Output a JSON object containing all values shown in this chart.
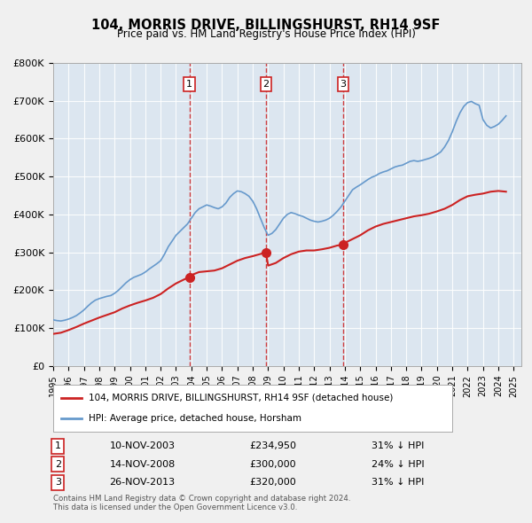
{
  "title": "104, MORRIS DRIVE, BILLINGSHURST, RH14 9SF",
  "subtitle": "Price paid vs. HM Land Registry's House Price Index (HPI)",
  "hpi_color": "#6699cc",
  "price_color": "#cc2222",
  "background_color": "#e8eef8",
  "plot_bg_color": "#dce6f0",
  "ylim": [
    0,
    800000
  ],
  "yticks": [
    0,
    100000,
    200000,
    300000,
    400000,
    500000,
    600000,
    700000,
    800000
  ],
  "ytick_labels": [
    "£0",
    "£100K",
    "£200K",
    "£300K",
    "£400K",
    "£500K",
    "£600K",
    "£700K",
    "£800K"
  ],
  "xlim_start": 1995.0,
  "xlim_end": 2025.5,
  "sales": [
    {
      "num": 1,
      "date": "10-NOV-2003",
      "price": 234950,
      "year": 2003.87,
      "pct": "31%",
      "dir": "↓"
    },
    {
      "num": 2,
      "date": "14-NOV-2008",
      "price": 300000,
      "year": 2008.87,
      "pct": "24%",
      "dir": "↓"
    },
    {
      "num": 3,
      "date": "26-NOV-2013",
      "price": 320000,
      "year": 2013.9,
      "pct": "31%",
      "dir": "↓"
    }
  ],
  "legend_label_price": "104, MORRIS DRIVE, BILLINGSHURST, RH14 9SF (detached house)",
  "legend_label_hpi": "HPI: Average price, detached house, Horsham",
  "footer1": "Contains HM Land Registry data © Crown copyright and database right 2024.",
  "footer2": "This data is licensed under the Open Government Licence v3.0.",
  "hpi_data_x": [
    1995.0,
    1995.25,
    1995.5,
    1995.75,
    1996.0,
    1996.25,
    1996.5,
    1996.75,
    1997.0,
    1997.25,
    1997.5,
    1997.75,
    1998.0,
    1998.25,
    1998.5,
    1998.75,
    1999.0,
    1999.25,
    1999.5,
    1999.75,
    2000.0,
    2000.25,
    2000.5,
    2000.75,
    2001.0,
    2001.25,
    2001.5,
    2001.75,
    2002.0,
    2002.25,
    2002.5,
    2002.75,
    2003.0,
    2003.25,
    2003.5,
    2003.75,
    2004.0,
    2004.25,
    2004.5,
    2004.75,
    2005.0,
    2005.25,
    2005.5,
    2005.75,
    2006.0,
    2006.25,
    2006.5,
    2006.75,
    2007.0,
    2007.25,
    2007.5,
    2007.75,
    2008.0,
    2008.25,
    2008.5,
    2008.75,
    2009.0,
    2009.25,
    2009.5,
    2009.75,
    2010.0,
    2010.25,
    2010.5,
    2010.75,
    2011.0,
    2011.25,
    2011.5,
    2011.75,
    2012.0,
    2012.25,
    2012.5,
    2012.75,
    2013.0,
    2013.25,
    2013.5,
    2013.75,
    2014.0,
    2014.25,
    2014.5,
    2014.75,
    2015.0,
    2015.25,
    2015.5,
    2015.75,
    2016.0,
    2016.25,
    2016.5,
    2016.75,
    2017.0,
    2017.25,
    2017.5,
    2017.75,
    2018.0,
    2018.25,
    2018.5,
    2018.75,
    2019.0,
    2019.25,
    2019.5,
    2019.75,
    2020.0,
    2020.25,
    2020.5,
    2020.75,
    2021.0,
    2021.25,
    2021.5,
    2021.75,
    2022.0,
    2022.25,
    2022.5,
    2022.75,
    2023.0,
    2023.25,
    2023.5,
    2023.75,
    2024.0,
    2024.25,
    2024.5
  ],
  "hpi_data_y": [
    122000,
    120000,
    119000,
    121000,
    124000,
    128000,
    133000,
    140000,
    148000,
    158000,
    167000,
    174000,
    178000,
    181000,
    184000,
    186000,
    192000,
    200000,
    210000,
    220000,
    228000,
    234000,
    238000,
    242000,
    248000,
    256000,
    263000,
    270000,
    278000,
    295000,
    315000,
    330000,
    345000,
    355000,
    365000,
    375000,
    390000,
    405000,
    415000,
    420000,
    425000,
    422000,
    418000,
    415000,
    420000,
    430000,
    445000,
    455000,
    462000,
    460000,
    455000,
    448000,
    435000,
    415000,
    390000,
    365000,
    345000,
    350000,
    360000,
    375000,
    390000,
    400000,
    405000,
    402000,
    398000,
    395000,
    390000,
    385000,
    382000,
    380000,
    382000,
    385000,
    390000,
    398000,
    408000,
    420000,
    435000,
    450000,
    465000,
    472000,
    478000,
    485000,
    492000,
    498000,
    502000,
    508000,
    512000,
    515000,
    520000,
    525000,
    528000,
    530000,
    535000,
    540000,
    542000,
    540000,
    542000,
    545000,
    548000,
    552000,
    558000,
    565000,
    578000,
    595000,
    618000,
    645000,
    668000,
    685000,
    695000,
    698000,
    692000,
    688000,
    650000,
    635000,
    628000,
    632000,
    638000,
    648000,
    660000
  ],
  "price_data_x": [
    1995.0,
    1995.5,
    1996.0,
    1996.5,
    1997.0,
    1997.5,
    1998.0,
    1998.5,
    1999.0,
    1999.5,
    2000.0,
    2000.5,
    2001.0,
    2001.5,
    2002.0,
    2002.5,
    2003.0,
    2003.5,
    2003.87,
    2004.0,
    2004.5,
    2005.0,
    2005.5,
    2006.0,
    2006.5,
    2007.0,
    2007.5,
    2008.0,
    2008.87,
    2009.0,
    2009.5,
    2010.0,
    2010.5,
    2011.0,
    2011.5,
    2012.0,
    2012.5,
    2013.0,
    2013.5,
    2013.9,
    2014.0,
    2014.5,
    2015.0,
    2015.5,
    2016.0,
    2016.5,
    2017.0,
    2017.5,
    2018.0,
    2018.5,
    2019.0,
    2019.5,
    2020.0,
    2020.5,
    2021.0,
    2021.5,
    2022.0,
    2022.5,
    2023.0,
    2023.5,
    2024.0,
    2024.5
  ],
  "price_data_y": [
    85000,
    88000,
    95000,
    103000,
    112000,
    120000,
    128000,
    135000,
    142000,
    152000,
    160000,
    167000,
    173000,
    180000,
    190000,
    205000,
    218000,
    228000,
    234950,
    240000,
    248000,
    250000,
    252000,
    258000,
    268000,
    278000,
    285000,
    290000,
    300000,
    265000,
    272000,
    285000,
    295000,
    302000,
    305000,
    305000,
    308000,
    312000,
    318000,
    320000,
    325000,
    335000,
    345000,
    358000,
    368000,
    375000,
    380000,
    385000,
    390000,
    395000,
    398000,
    402000,
    408000,
    415000,
    425000,
    438000,
    448000,
    452000,
    455000,
    460000,
    462000,
    460000
  ]
}
